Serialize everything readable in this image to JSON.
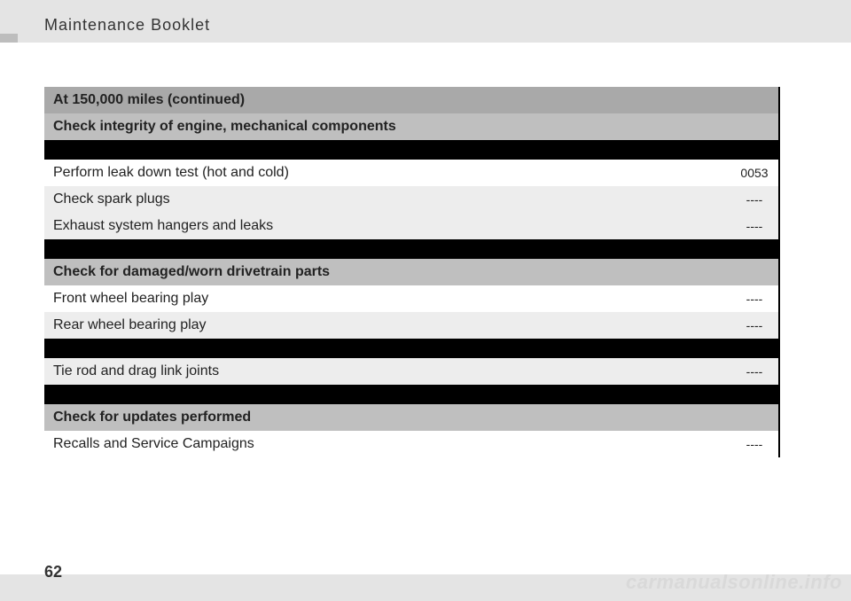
{
  "header": {
    "title": "Maintenance Booklet"
  },
  "page": {
    "number": "62"
  },
  "watermark": "carmanualsonline.info",
  "table": {
    "title_row": {
      "text": "At 150,000 miles (continued)",
      "code": ""
    },
    "sections": [
      {
        "header": {
          "text": "Check integrity of engine, mechanical components",
          "code": ""
        },
        "rows": [
          {
            "text": "",
            "code": "",
            "style": "black"
          },
          {
            "text": "Perform leak down test (hot and cold)",
            "code": "0053",
            "style": "white"
          },
          {
            "text": "Check spark plugs",
            "code": "----",
            "style": "grey"
          },
          {
            "text": "Exhaust system hangers and leaks",
            "code": "----",
            "style": "grey"
          },
          {
            "text": "",
            "code": "",
            "style": "black"
          }
        ]
      },
      {
        "header": {
          "text": "Check for damaged/worn drivetrain parts",
          "code": ""
        },
        "rows": [
          {
            "text": "Front wheel bearing play",
            "code": "----",
            "style": "white"
          },
          {
            "text": "Rear wheel bearing play",
            "code": "----",
            "style": "grey"
          },
          {
            "text": "",
            "code": "",
            "style": "black"
          },
          {
            "text": "Tie rod and drag link joints",
            "code": "----",
            "style": "grey"
          },
          {
            "text": "",
            "code": "",
            "style": "black"
          }
        ]
      },
      {
        "header": {
          "text": "Check for updates performed",
          "code": ""
        },
        "rows": [
          {
            "text": "Recalls and Service Campaigns",
            "code": "----",
            "style": "white"
          }
        ]
      }
    ]
  },
  "colors": {
    "page_bg": "#e4e4e4",
    "white": "#ffffff",
    "grey_row": "#ededed",
    "hdr_main": "#a9a9a9",
    "hdr_sub": "#bfbfbf",
    "black": "#000000"
  }
}
